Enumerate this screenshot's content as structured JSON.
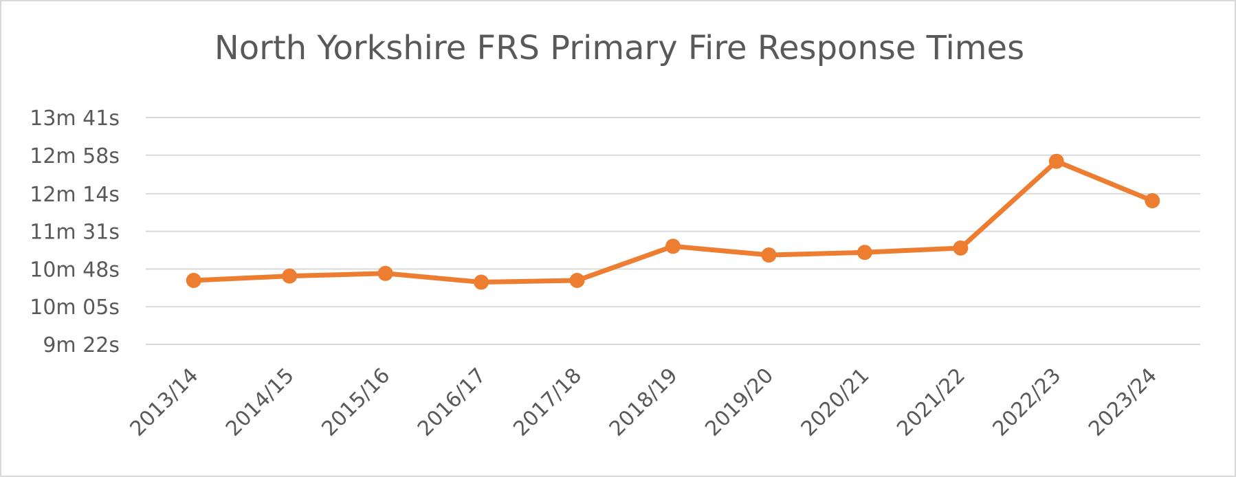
{
  "chart_data": {
    "type": "line",
    "title": "North Yorkshire FRS Primary Fire Response Times",
    "categories": [
      "2013/14",
      "2014/15",
      "2015/16",
      "2016/17",
      "2017/18",
      "2018/19",
      "2019/20",
      "2020/21",
      "2021/22",
      "2022/23",
      "2023/24"
    ],
    "series": [
      {
        "values_seconds": [
          635,
          640,
          643,
          633,
          635,
          674,
          664,
          667,
          672,
          771,
          726
        ],
        "color": "#ED7D31"
      }
    ],
    "y_ticks": [
      {
        "label": "9m 22s",
        "seconds": 562
      },
      {
        "label": "10m 05s",
        "seconds": 605
      },
      {
        "label": "10m 48s",
        "seconds": 648
      },
      {
        "label": "11m 31s",
        "seconds": 691
      },
      {
        "label": "12m 14s",
        "seconds": 734
      },
      {
        "label": "12m 58s",
        "seconds": 778
      },
      {
        "label": "13m 41s",
        "seconds": 821
      }
    ],
    "ylim_seconds": [
      562,
      821
    ],
    "grid": true,
    "legend": "none",
    "gridline_color": "#d9d9d9",
    "text_color": "#595959"
  }
}
